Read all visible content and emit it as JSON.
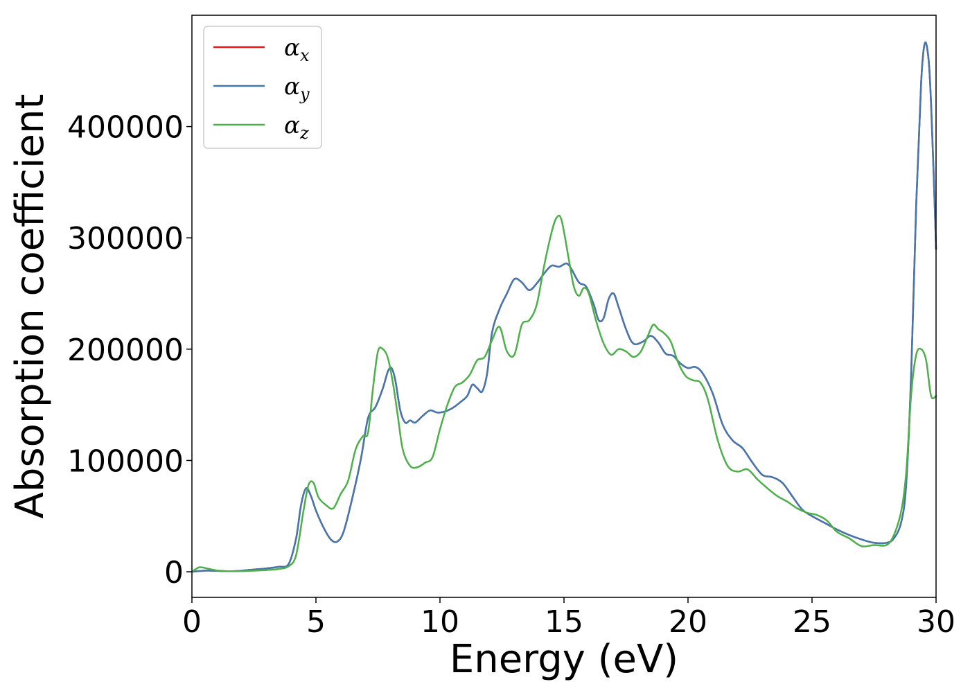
{
  "chart_data": {
    "type": "line",
    "xlabel": "Energy (eV)",
    "ylabel": "Absorption coefficient",
    "xlim": [
      0,
      30
    ],
    "ylim": [
      -23000,
      500000
    ],
    "x_ticks": [
      0,
      5,
      10,
      15,
      20,
      25,
      30
    ],
    "x_tick_labels": [
      "0",
      "5",
      "10",
      "15",
      "20",
      "25",
      "30"
    ],
    "y_ticks": [
      0,
      100000,
      200000,
      300000,
      400000
    ],
    "y_tick_labels": [
      "0",
      "100000",
      "200000",
      "300000",
      "400000"
    ],
    "grid": false,
    "legend_position": "top-left",
    "series": [
      {
        "name": "αx",
        "legend_base": "α",
        "legend_sub": "x",
        "color": "#e41a1c",
        "x": [
          0,
          0.5,
          1,
          1.5,
          2,
          2.5,
          3,
          3.5,
          3.9,
          4.2,
          4.4,
          4.6,
          4.8,
          5.0,
          5.3,
          5.6,
          5.85,
          6.1,
          6.4,
          6.8,
          7.1,
          7.4,
          7.7,
          7.9,
          8.05,
          8.2,
          8.4,
          8.6,
          8.8,
          9.0,
          9.3,
          9.6,
          9.9,
          10.2,
          10.5,
          10.8,
          11.1,
          11.3,
          11.5,
          11.7,
          11.9,
          12.1,
          12.4,
          12.7,
          13.0,
          13.3,
          13.6,
          13.9,
          14.2,
          14.5,
          14.8,
          15.1,
          15.3,
          15.6,
          15.9,
          16.2,
          16.4,
          16.6,
          16.8,
          17.0,
          17.2,
          17.5,
          17.8,
          18.2,
          18.5,
          18.8,
          19.1,
          19.4,
          19.7,
          20.0,
          20.3,
          20.6,
          21.0,
          21.4,
          21.8,
          22.2,
          22.6,
          23.0,
          23.4,
          23.8,
          24.2,
          24.6,
          25.0,
          25.5,
          26.0,
          26.5,
          27.0,
          27.5,
          28.0,
          28.3,
          28.6,
          28.8,
          29.0,
          29.2,
          29.4,
          29.55,
          29.7,
          29.8,
          29.9,
          30.0
        ],
        "values": [
          0,
          1000,
          800,
          500,
          1000,
          2000,
          3000,
          4500,
          7000,
          30000,
          60000,
          75000,
          68000,
          55000,
          40000,
          29000,
          27000,
          35000,
          60000,
          100000,
          138000,
          148000,
          165000,
          180000,
          183000,
          172000,
          145000,
          134000,
          136000,
          134000,
          140000,
          145000,
          143000,
          144000,
          147000,
          152000,
          158000,
          168000,
          165000,
          162000,
          178000,
          215000,
          236000,
          250000,
          263000,
          260000,
          253000,
          259000,
          268000,
          275000,
          274000,
          277000,
          272000,
          260000,
          256000,
          240000,
          226000,
          228000,
          245000,
          250000,
          238000,
          218000,
          205000,
          207000,
          212000,
          206000,
          196000,
          194000,
          187000,
          183000,
          184000,
          178000,
          160000,
          132000,
          118000,
          111000,
          98000,
          87000,
          85000,
          80000,
          68000,
          56000,
          50000,
          44000,
          38000,
          33000,
          29000,
          26000,
          26000,
          30000,
          45000,
          80000,
          180000,
          330000,
          440000,
          475000,
          460000,
          420000,
          360000,
          290000
        ]
      },
      {
        "name": "αy",
        "legend_base": "α",
        "legend_sub": "y",
        "color": "#4178b0",
        "x": [
          0,
          0.5,
          1,
          1.5,
          2,
          2.5,
          3,
          3.5,
          3.9,
          4.2,
          4.4,
          4.6,
          4.8,
          5.0,
          5.3,
          5.6,
          5.85,
          6.1,
          6.4,
          6.8,
          7.1,
          7.4,
          7.7,
          7.9,
          8.05,
          8.2,
          8.4,
          8.6,
          8.8,
          9.0,
          9.3,
          9.6,
          9.9,
          10.2,
          10.5,
          10.8,
          11.1,
          11.3,
          11.5,
          11.7,
          11.9,
          12.1,
          12.4,
          12.7,
          13.0,
          13.3,
          13.6,
          13.9,
          14.2,
          14.5,
          14.8,
          15.1,
          15.3,
          15.6,
          15.9,
          16.2,
          16.4,
          16.6,
          16.8,
          17.0,
          17.2,
          17.5,
          17.8,
          18.2,
          18.5,
          18.8,
          19.1,
          19.4,
          19.7,
          20.0,
          20.3,
          20.6,
          21.0,
          21.4,
          21.8,
          22.2,
          22.6,
          23.0,
          23.4,
          23.8,
          24.2,
          24.6,
          25.0,
          25.5,
          26.0,
          26.5,
          27.0,
          27.5,
          28.0,
          28.3,
          28.6,
          28.8,
          29.0,
          29.2,
          29.4,
          29.55,
          29.7,
          29.8,
          29.9,
          30.0
        ],
        "values": [
          0,
          1000,
          800,
          500,
          1000,
          2000,
          3000,
          4500,
          7000,
          30000,
          60000,
          75000,
          68000,
          55000,
          40000,
          29000,
          27000,
          35000,
          60000,
          100000,
          138000,
          148000,
          165000,
          180000,
          183000,
          172000,
          145000,
          134000,
          136000,
          134000,
          140000,
          145000,
          143000,
          144000,
          147000,
          152000,
          158000,
          168000,
          165000,
          162000,
          178000,
          215000,
          236000,
          250000,
          263000,
          260000,
          253000,
          259000,
          268000,
          275000,
          274000,
          277000,
          272000,
          260000,
          256000,
          240000,
          226000,
          228000,
          245000,
          250000,
          238000,
          218000,
          205000,
          207000,
          212000,
          206000,
          196000,
          194000,
          187000,
          183000,
          184000,
          178000,
          160000,
          132000,
          118000,
          111000,
          98000,
          87000,
          85000,
          80000,
          68000,
          56000,
          50000,
          44000,
          38000,
          33000,
          29000,
          26000,
          26000,
          30000,
          45000,
          80000,
          180000,
          330000,
          440000,
          475000,
          460000,
          420000,
          360000,
          290000
        ]
      },
      {
        "name": "αz",
        "legend_base": "α",
        "legend_sub": "z",
        "color": "#4daf4a",
        "x": [
          0,
          0.3,
          0.6,
          1,
          1.5,
          2,
          2.5,
          3,
          3.5,
          3.9,
          4.2,
          4.5,
          4.7,
          4.9,
          5.1,
          5.4,
          5.7,
          6.0,
          6.3,
          6.6,
          6.9,
          7.1,
          7.3,
          7.5,
          7.7,
          7.9,
          8.1,
          8.3,
          8.5,
          8.8,
          9.1,
          9.4,
          9.7,
          10.0,
          10.3,
          10.6,
          10.9,
          11.2,
          11.5,
          11.8,
          12.1,
          12.4,
          12.7,
          13.0,
          13.3,
          13.6,
          13.9,
          14.2,
          14.5,
          14.7,
          14.9,
          15.2,
          15.4,
          15.6,
          15.8,
          16.0,
          16.3,
          16.6,
          16.9,
          17.2,
          17.5,
          17.8,
          18.1,
          18.4,
          18.6,
          18.8,
          19.0,
          19.3,
          19.6,
          19.9,
          20.2,
          20.5,
          20.8,
          21.2,
          21.6,
          22.0,
          22.4,
          22.8,
          23.2,
          23.6,
          24.0,
          24.4,
          24.8,
          25.2,
          25.6,
          26.0,
          26.5,
          27.0,
          27.5,
          28.0,
          28.3,
          28.6,
          28.8,
          29.0,
          29.2,
          29.4,
          29.6,
          29.8,
          30.0
        ],
        "values": [
          0,
          4000,
          3000,
          1200,
          500,
          600,
          1000,
          1500,
          2500,
          5000,
          15000,
          55000,
          78000,
          80000,
          67000,
          60000,
          57000,
          70000,
          82000,
          110000,
          122000,
          125000,
          165000,
          198000,
          200000,
          192000,
          170000,
          140000,
          110000,
          95000,
          94000,
          98000,
          103000,
          128000,
          150000,
          166000,
          170000,
          177000,
          190000,
          193000,
          208000,
          220000,
          198000,
          195000,
          222000,
          226000,
          240000,
          275000,
          305000,
          318000,
          316000,
          280000,
          256000,
          248000,
          255000,
          250000,
          225000,
          205000,
          195000,
          200000,
          198000,
          193000,
          198000,
          213000,
          222000,
          218000,
          215000,
          207000,
          188000,
          176000,
          172000,
          170000,
          155000,
          118000,
          95000,
          90000,
          92000,
          83000,
          75000,
          68000,
          63000,
          57000,
          53000,
          51000,
          46000,
          36000,
          30000,
          23000,
          24000,
          24000,
          33000,
          55000,
          90000,
          160000,
          195000,
          200000,
          190000,
          158000,
          158000
        ]
      }
    ]
  }
}
